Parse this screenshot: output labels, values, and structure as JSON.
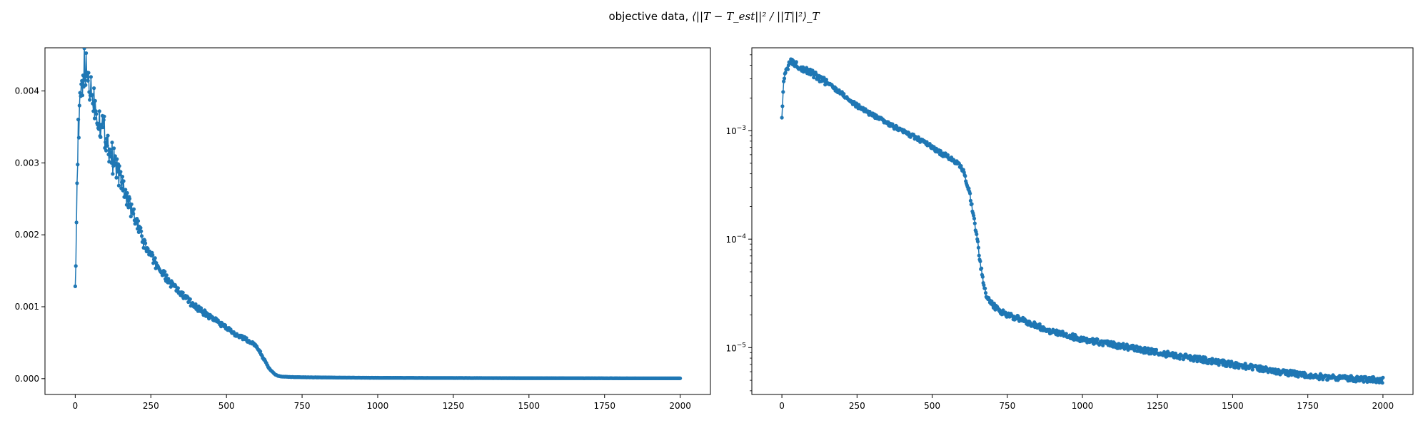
{
  "figure": {
    "title_text": "objective data,",
    "title_math": "⟨||T − T_est||² / ||T||²⟩_T"
  },
  "style": {
    "series_color": "#1f77b4",
    "marker": "dot"
  },
  "chart_data": [
    {
      "type": "line",
      "yscale": "linear",
      "xlim": [
        -100,
        2100
      ],
      "ylim": [
        -0.00022,
        0.0046
      ],
      "xticks": [
        0,
        250,
        500,
        750,
        1000,
        1250,
        1500,
        1750,
        2000
      ],
      "xtick_labels": [
        "0",
        "250",
        "500",
        "750",
        "1000",
        "1250",
        "1500",
        "1750",
        "2000"
      ],
      "yticks": [
        0.0,
        0.001,
        0.002,
        0.003,
        0.004
      ],
      "ytick_labels": [
        "0.000",
        "0.001",
        "0.002",
        "0.003",
        "0.004"
      ],
      "grid": false,
      "x": [
        0,
        2,
        5,
        8,
        10,
        15,
        20,
        25,
        30,
        40,
        50,
        60,
        80,
        100,
        120,
        140,
        160,
        180,
        200,
        225,
        250,
        275,
        300,
        325,
        350,
        375,
        400,
        425,
        450,
        475,
        500,
        525,
        550,
        575,
        590,
        600,
        610,
        620,
        630,
        640,
        650,
        660,
        670,
        680,
        700,
        725,
        750,
        800,
        900,
        1000,
        1250,
        1500,
        1750,
        2000
      ],
      "y": [
        0.00138,
        0.00167,
        0.00248,
        0.00305,
        0.00338,
        0.0037,
        0.00395,
        0.0042,
        0.0043,
        0.0042,
        0.00405,
        0.0039,
        0.0036,
        0.0034,
        0.0031,
        0.0029,
        0.00265,
        0.0024,
        0.0022,
        0.0019,
        0.0017,
        0.00155,
        0.0014,
        0.00128,
        0.00118,
        0.00108,
        0.001,
        0.00092,
        0.00085,
        0.00078,
        0.0007,
        0.00063,
        0.00058,
        0.00052,
        0.00048,
        0.00044,
        0.00038,
        0.0003,
        0.00022,
        0.00015,
        0.0001,
        6e-05,
        4e-05,
        3e-05,
        2.5e-05,
        2.2e-05,
        2e-05,
        1.8e-05,
        1.4e-05,
        1.2e-05,
        9e-06,
        7e-06,
        5.5e-06,
        5e-06
      ]
    },
    {
      "type": "line",
      "yscale": "log",
      "xlim": [
        -100,
        2100
      ],
      "ylim": [
        3.7e-06,
        0.0058
      ],
      "xticks": [
        0,
        250,
        500,
        750,
        1000,
        1250,
        1500,
        1750,
        2000
      ],
      "xtick_labels": [
        "0",
        "250",
        "500",
        "750",
        "1000",
        "1250",
        "1500",
        "1750",
        "2000"
      ],
      "yticks": [
        1e-05,
        0.0001,
        0.001
      ],
      "ytick_labels_base": [
        "10",
        "10",
        "10"
      ],
      "ytick_labels_exp": [
        "−5",
        "−4",
        "−3"
      ],
      "grid": false,
      "x": [
        0,
        2,
        5,
        8,
        10,
        15,
        20,
        25,
        30,
        40,
        50,
        60,
        80,
        100,
        120,
        140,
        160,
        180,
        200,
        225,
        250,
        275,
        300,
        325,
        350,
        375,
        400,
        425,
        450,
        475,
        500,
        525,
        550,
        575,
        590,
        600,
        610,
        620,
        630,
        640,
        650,
        660,
        670,
        680,
        700,
        725,
        750,
        800,
        900,
        1000,
        1250,
        1500,
        1750,
        2000
      ],
      "y": [
        0.00138,
        0.00167,
        0.00248,
        0.00305,
        0.00338,
        0.0037,
        0.00395,
        0.0042,
        0.0043,
        0.0042,
        0.00405,
        0.0039,
        0.0036,
        0.0034,
        0.0031,
        0.0029,
        0.00265,
        0.0024,
        0.0022,
        0.0019,
        0.0017,
        0.00155,
        0.0014,
        0.00128,
        0.00118,
        0.00108,
        0.001,
        0.00092,
        0.00085,
        0.00078,
        0.0007,
        0.00063,
        0.00058,
        0.00052,
        0.00048,
        0.00044,
        0.00038,
        0.0003,
        0.00022,
        0.00015,
        0.0001,
        6e-05,
        4e-05,
        3e-05,
        2.5e-05,
        2.2e-05,
        2e-05,
        1.8e-05,
        1.4e-05,
        1.2e-05,
        9e-06,
        7e-06,
        5.5e-06,
        5e-06
      ]
    }
  ]
}
